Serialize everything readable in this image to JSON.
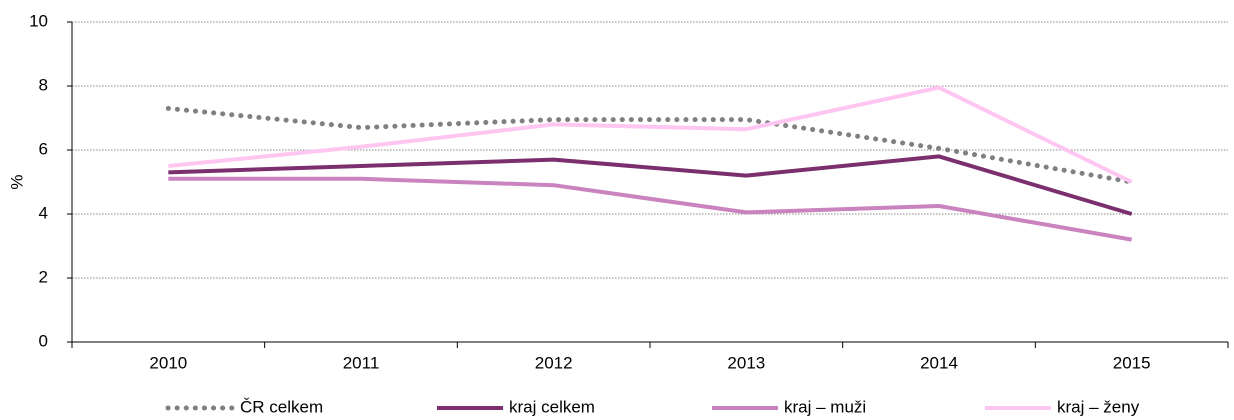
{
  "chart_data": {
    "type": "line",
    "y_label": "%",
    "categories": [
      "2010",
      "2011",
      "2012",
      "2013",
      "2014",
      "2015"
    ],
    "series": [
      {
        "name": "ČR celkem",
        "color": "#808080",
        "dash": "dotted",
        "values": [
          7.3,
          6.7,
          6.95,
          6.95,
          6.05,
          5.0
        ]
      },
      {
        "name": "kraj celkem",
        "color": "#7b2f6e",
        "values": [
          5.3,
          5.5,
          5.7,
          5.2,
          5.8,
          4.0
        ]
      },
      {
        "name": "kraj – muži",
        "color": "#c983bf",
        "values": [
          5.1,
          5.1,
          4.9,
          4.05,
          4.25,
          3.2
        ]
      },
      {
        "name": "kraj – ženy",
        "color": "#ffc6f2",
        "values": [
          5.5,
          6.1,
          6.8,
          6.65,
          7.95,
          5.0
        ]
      }
    ],
    "ylim": [
      0,
      10
    ],
    "yticks": [
      0,
      2,
      4,
      6,
      8,
      10
    ],
    "grid": true,
    "legend": "bottom"
  }
}
